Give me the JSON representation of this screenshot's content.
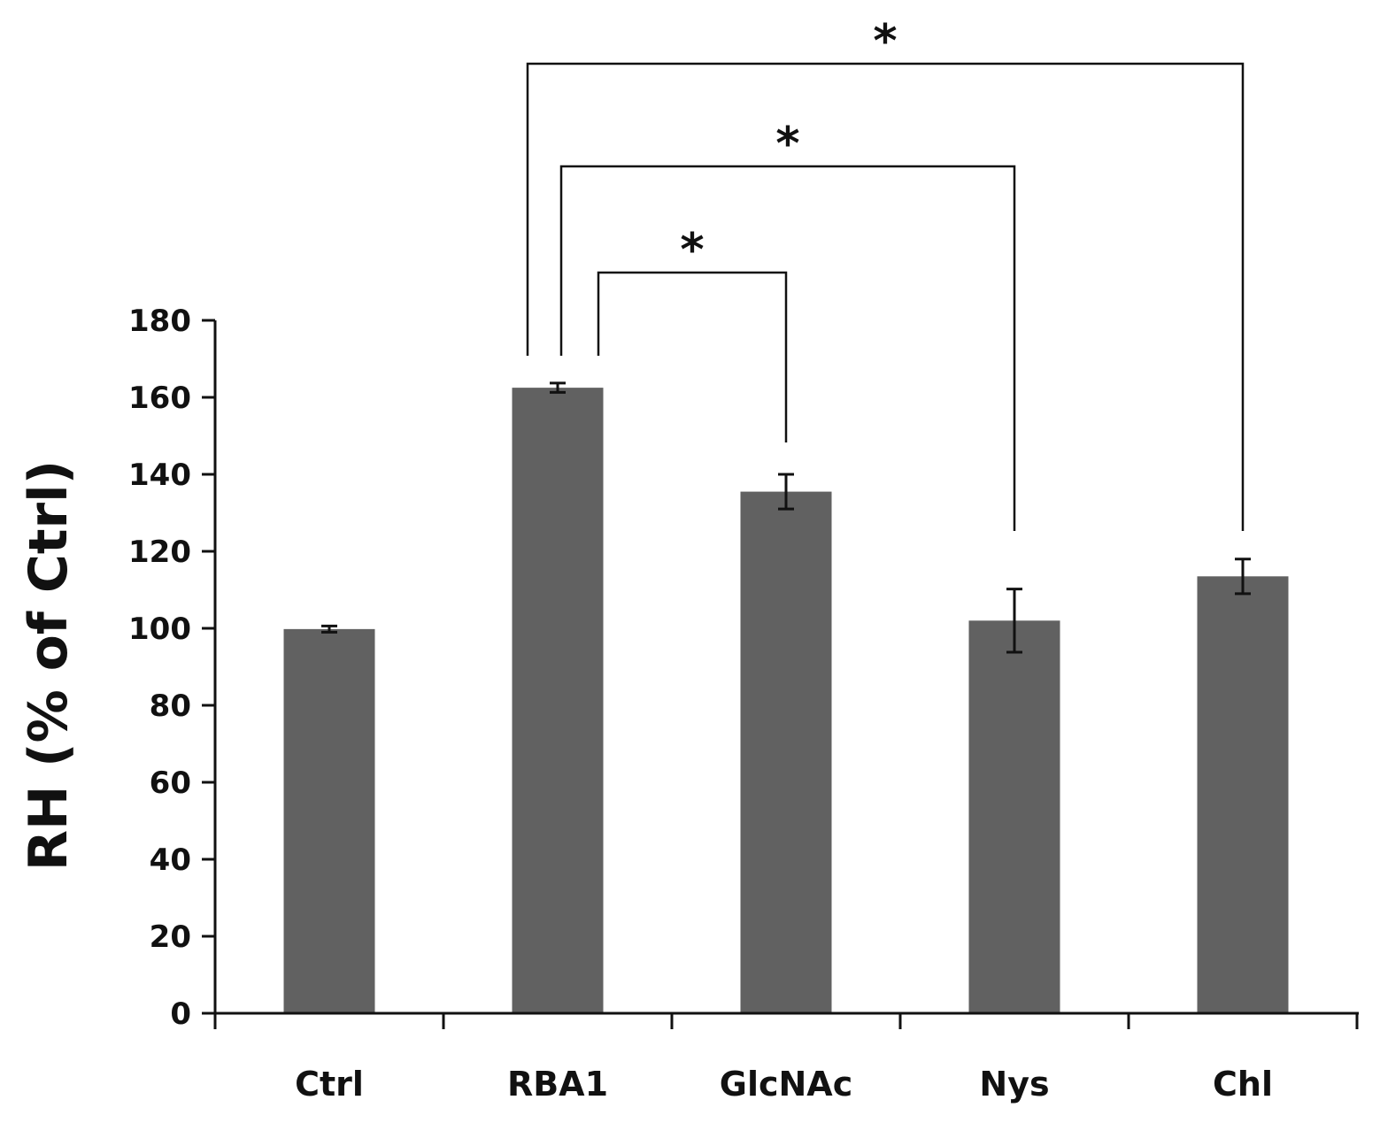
{
  "chart_data": {
    "type": "bar",
    "title": "",
    "xlabel": "",
    "ylabel": "RH (% of Ctrl)",
    "categories": [
      "Ctrl",
      "RBA1",
      "GlcNAc",
      "Nys",
      "Chl"
    ],
    "values": [
      99.8,
      162.5,
      135.5,
      102,
      113.5
    ],
    "errors": [
      0.8,
      1.2,
      4.5,
      8.2,
      4.5
    ],
    "ylim": [
      0,
      180
    ],
    "yticks": [
      0,
      20,
      40,
      60,
      80,
      100,
      120,
      140,
      160,
      180
    ],
    "bar_color": "#616161",
    "axis_color": "#111111",
    "significance": [
      {
        "from": "RBA1",
        "to": "GlcNAc",
        "label": "*"
      },
      {
        "from": "RBA1",
        "to": "Nys",
        "label": "*"
      },
      {
        "from": "RBA1",
        "to": "Chl",
        "label": "*"
      }
    ]
  }
}
